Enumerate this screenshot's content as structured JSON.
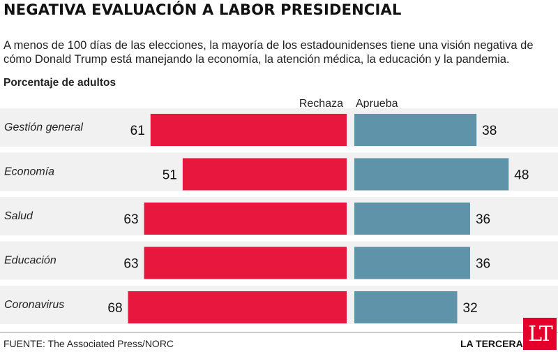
{
  "header": {
    "title": "NEGATIVA EVALUACIÓN A LABOR PRESIDENCIAL",
    "subtitle": "A menos de 100 días de las elecciones, la mayoría de los estadounidenses tiene una visión negativa de cómo Donald Trump está manejando la economía, la atención médica, la educación y la pandemia.",
    "unit_label": "Porcentaje de adultos"
  },
  "footer": {
    "source": "FUENTE: The Associated Press/NORC",
    "brand": "LA TERCERA",
    "logo": "LT"
  },
  "colors": {
    "rechaza": "#e8173d",
    "aprueba": "#5f93a9",
    "row_bg": "#f1f1f1",
    "brand": "#e4002b"
  },
  "chart_data": {
    "type": "bar",
    "orientation": "horizontal-diverging",
    "categories": [
      "Gestión general",
      "Economía",
      "Salud",
      "Educación",
      "Coronavirus"
    ],
    "series": [
      {
        "name": "Rechaza",
        "values": [
          61,
          51,
          63,
          63,
          68
        ]
      },
      {
        "name": "Aprueba",
        "values": [
          38,
          48,
          36,
          36,
          32
        ]
      }
    ],
    "xlim": [
      0,
      68
    ],
    "grid": false,
    "legend": "top-center"
  }
}
